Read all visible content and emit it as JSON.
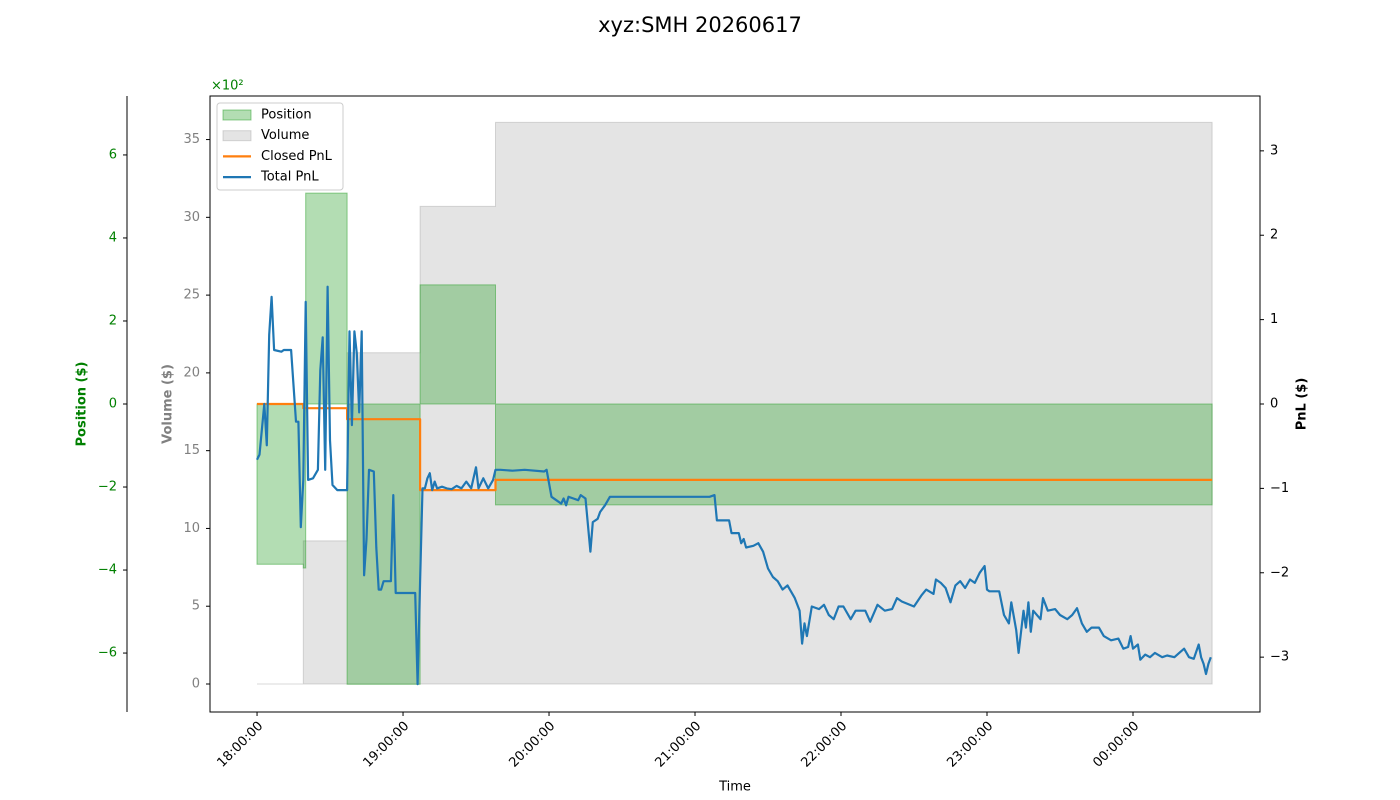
{
  "chart_data": {
    "type": "line",
    "title": "xyz:SMH 20260617",
    "xlabel": "Time",
    "ylabel": "Volume ($)",
    "y2label": "PnL ($)",
    "y3label": "Position ($)",
    "y3offset": "×10²",
    "legend": "upper left",
    "grid": false,
    "xlim": [
      "17:40:40",
      "00:52:12"
    ],
    "xticks": [
      "18:00:00",
      "19:00:00",
      "20:00:00",
      "21:00:00",
      "22:00:00",
      "23:00:00",
      "00:00:00"
    ],
    "ylim": [
      -1.8,
      37.8
    ],
    "yticks": [
      0,
      5,
      10,
      15,
      20,
      25,
      30,
      35
    ],
    "y2lim": [
      -3.65,
      3.65
    ],
    "y2ticks": [
      {
        "value": -3,
        "label": "−3"
      },
      {
        "value": -2,
        "label": "−2"
      },
      {
        "value": -1,
        "label": "−1"
      },
      0,
      1,
      2,
      3
    ],
    "y3lim": [
      -742,
      742
    ],
    "y3ticks": [
      {
        "value": -600,
        "label": "−6"
      },
      {
        "value": -400,
        "label": "−4"
      },
      {
        "value": -200,
        "label": "−2"
      },
      {
        "value": 0,
        "label": "0"
      },
      {
        "value": 200,
        "label": "2"
      },
      {
        "value": 400,
        "label": "4"
      },
      {
        "value": 600,
        "label": "6"
      }
    ],
    "series": [
      {
        "name": "Position",
        "kind": "area",
        "step": true,
        "axis": "y3",
        "color": "#2ca02c",
        "alpha": 0.36,
        "x": [
          "18:00:00",
          "18:19:00",
          "18:20:00",
          "18:37:00",
          "19:07:00",
          "19:38:00",
          "00:32:30"
        ],
        "values": [
          -386,
          -395,
          508,
          -675,
          287,
          -243,
          -243
        ]
      },
      {
        "name": "Volume",
        "kind": "area",
        "step": true,
        "axis": "y",
        "color": "#808080",
        "alpha": 0.21,
        "x": [
          "18:00:00",
          "18:19:00",
          "18:37:00",
          "19:07:00",
          "19:38:00",
          "00:32:30"
        ],
        "values": [
          0,
          9.2,
          21.3,
          30.7,
          36.1,
          36.1
        ]
      },
      {
        "name": "Closed PnL",
        "kind": "line",
        "step": true,
        "axis": "y2",
        "color": "#ff7f0e",
        "x": [
          "18:00:00",
          "18:19:00",
          "18:37:00",
          "19:07:00",
          "19:38:00",
          "00:32:30"
        ],
        "values": [
          0,
          -0.05,
          -0.18,
          -1.02,
          -0.9,
          -0.9
        ]
      },
      {
        "name": "Total PnL",
        "kind": "line",
        "step": false,
        "axis": "y2",
        "color": "#1f77b4",
        "x": [
          "18:00:00",
          "18:01:00",
          "18:03:00",
          "18:04:00",
          "18:05:00",
          "18:06:00",
          "18:07:00",
          "18:10:00",
          "18:11:00",
          "18:14:00",
          "18:16:00",
          "18:17:00",
          "18:18:00",
          "18:19:00",
          "18:20:00",
          "18:21:00",
          "18:23:00",
          "18:25:00",
          "18:26:00",
          "18:27:00",
          "18:28:00",
          "18:29:00",
          "18:30:00",
          "18:31:00",
          "18:33:00",
          "18:37:00",
          "18:38:00",
          "18:39:00",
          "18:40:00",
          "18:41:00",
          "18:42:00",
          "18:43:00",
          "18:44:00",
          "18:45:00",
          "18:46:00",
          "18:48:00",
          "18:49:00",
          "18:50:00",
          "18:51:00",
          "18:52:00",
          "18:55:00",
          "18:56:00",
          "18:57:00",
          "19:05:00",
          "19:06:00",
          "19:07:00",
          "19:08:00",
          "19:09:00",
          "19:10:00",
          "19:11:00",
          "19:12:00",
          "19:13:00",
          "19:14:00",
          "19:16:00",
          "19:18:00",
          "19:20:00",
          "19:22:00",
          "19:24:00",
          "19:26:00",
          "19:28:00",
          "19:30:00",
          "19:31:00",
          "19:33:00",
          "19:35:00",
          "19:37:00",
          "19:38:00",
          "19:40:00",
          "19:45:00",
          "19:50:00",
          "19:58:00",
          "19:59:00",
          "20:01:00",
          "20:03:00",
          "20:05:00",
          "20:06:00",
          "20:07:00",
          "20:08:00",
          "20:10:00",
          "20:12:00",
          "20:13:00",
          "20:15:00",
          "20:17:00",
          "20:18:00",
          "20:20:00",
          "20:21:00",
          "20:23:00",
          "20:25:00",
          "20:50:00",
          "21:06:00",
          "21:08:00",
          "21:09:00",
          "21:14:00",
          "21:15:00",
          "21:18:00",
          "21:19:00",
          "21:20:00",
          "21:21:00",
          "21:24:00",
          "21:26:00",
          "21:28:00",
          "21:30:00",
          "21:32:00",
          "21:34:00",
          "21:36:00",
          "21:38:00",
          "21:41:00",
          "21:43:00",
          "21:44:00",
          "21:45:00",
          "21:46:00",
          "21:48:00",
          "21:51:00",
          "21:53:00",
          "21:55:00",
          "21:57:00",
          "21:59:00",
          "22:01:00",
          "22:04:00",
          "22:06:00",
          "22:10:00",
          "22:12:00",
          "22:15:00",
          "22:18:00",
          "22:21:00",
          "22:23:00",
          "22:25:00",
          "22:30:00",
          "22:33:00",
          "22:35:00",
          "22:38:00",
          "22:39:00",
          "22:41:00",
          "22:43:00",
          "22:45:00",
          "22:47:00",
          "22:49:00",
          "22:51:00",
          "22:53:00",
          "22:55:00",
          "22:57:00",
          "22:59:00",
          "23:00:00",
          "23:01:00",
          "23:05:00",
          "23:07:00",
          "23:09:00",
          "23:10:00",
          "23:12:00",
          "23:13:00",
          "23:15:00",
          "23:16:00",
          "23:17:00",
          "23:18:00",
          "23:19:00",
          "23:22:00",
          "23:23:00",
          "23:25:00",
          "23:28:00",
          "23:30:00",
          "23:33:00",
          "23:35:00",
          "23:37:00",
          "23:39:00",
          "23:41:00",
          "23:43:00",
          "23:46:00",
          "23:48:00",
          "23:51:00",
          "23:54:00",
          "23:56:00",
          "23:58:00",
          "23:59:00",
          "00:00:00",
          "00:02:00",
          "00:03:00",
          "00:05:00",
          "00:07:00",
          "00:09:00",
          "00:12:00",
          "00:14:00",
          "00:17:00",
          "00:19:00",
          "00:21:00",
          "00:23:00",
          "00:25:00",
          "00:27:00",
          "00:28:00",
          "00:29:00",
          "00:30:00",
          "00:31:00",
          "00:32:00"
        ],
        "values": [
          -0.66,
          -0.6,
          0,
          -0.49,
          0.82,
          1.27,
          0.64,
          0.62,
          0.64,
          0.64,
          -0.21,
          -0.21,
          -1.46,
          -0.9,
          1.21,
          -0.9,
          -0.88,
          -0.78,
          0.4,
          0.79,
          -0.78,
          1.39,
          -0.43,
          -0.96,
          -1.02,
          -1.02,
          0.86,
          -0.25,
          0.86,
          0.6,
          -0.1,
          0.86,
          -2.03,
          -1.6,
          -0.78,
          -0.8,
          -1.7,
          -2.2,
          -2.2,
          -2.1,
          -2.1,
          -1.08,
          -2.24,
          -2.24,
          -3.32,
          -2.1,
          -1.0,
          -1.0,
          -0.88,
          -0.82,
          -1.02,
          -0.92,
          -1.0,
          -0.98,
          -1.0,
          -1.01,
          -0.97,
          -1.0,
          -0.92,
          -1.0,
          -0.75,
          -1.0,
          -0.88,
          -1.0,
          -0.9,
          -0.78,
          -0.78,
          -0.79,
          -0.78,
          -0.8,
          -0.78,
          -1.1,
          -1.14,
          -1.18,
          -1.12,
          -1.2,
          -1.1,
          -1.12,
          -1.14,
          -1.08,
          -1.12,
          -1.75,
          -1.4,
          -1.36,
          -1.28,
          -1.2,
          -1.1,
          -1.1,
          -1.1,
          -1.08,
          -1.38,
          -1.38,
          -1.53,
          -1.53,
          -1.65,
          -1.6,
          -1.7,
          -1.68,
          -1.65,
          -1.75,
          -1.95,
          -2.05,
          -2.1,
          -2.2,
          -2.15,
          -2.3,
          -2.45,
          -2.84,
          -2.6,
          -2.75,
          -2.4,
          -2.43,
          -2.38,
          -2.5,
          -2.55,
          -2.4,
          -2.4,
          -2.55,
          -2.45,
          -2.45,
          -2.58,
          -2.38,
          -2.45,
          -2.43,
          -2.3,
          -2.34,
          -2.4,
          -2.27,
          -2.2,
          -2.25,
          -2.08,
          -2.12,
          -2.18,
          -2.35,
          -2.15,
          -2.1,
          -2.18,
          -2.08,
          -2.12,
          -2.0,
          -1.92,
          -2.2,
          -2.22,
          -2.22,
          -2.5,
          -2.6,
          -2.35,
          -2.68,
          -2.95,
          -2.45,
          -2.65,
          -2.35,
          -2.7,
          -2.45,
          -2.55,
          -2.3,
          -2.45,
          -2.43,
          -2.5,
          -2.55,
          -2.5,
          -2.42,
          -2.6,
          -2.7,
          -2.65,
          -2.65,
          -2.75,
          -2.8,
          -2.78,
          -2.9,
          -2.88,
          -2.75,
          -2.9,
          -2.85,
          -3.03,
          -2.97,
          -3.0,
          -2.95,
          -3.0,
          -2.98,
          -3.0,
          -2.95,
          -2.9,
          -3.0,
          -3.02,
          -2.85,
          -3.0,
          -3.08,
          -3.2,
          -3.08,
          -3.0
        ]
      }
    ]
  }
}
